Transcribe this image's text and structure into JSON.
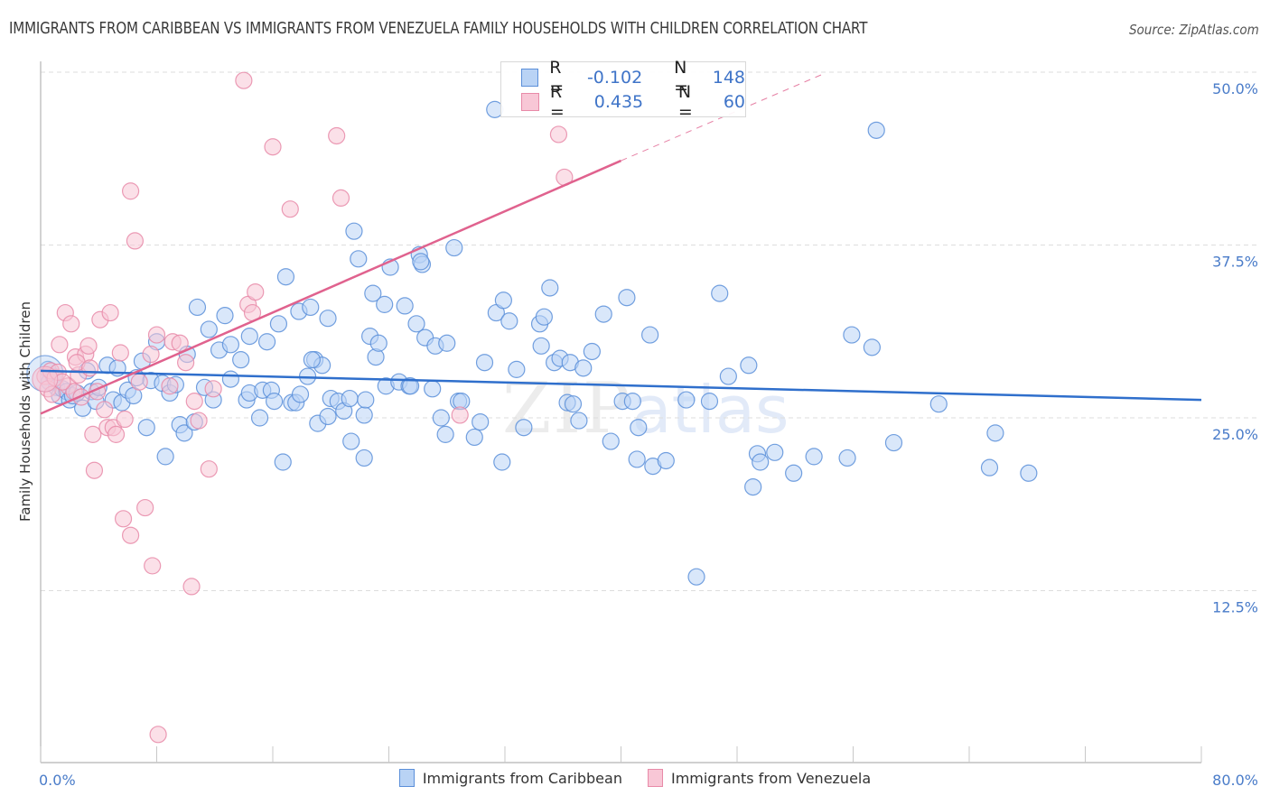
{
  "header": {
    "title": "IMMIGRANTS FROM CARIBBEAN VS IMMIGRANTS FROM VENEZUELA FAMILY HOUSEHOLDS WITH CHILDREN CORRELATION CHART",
    "source": "Source: ZipAtlas.com"
  },
  "watermark": {
    "zip": "ZIP",
    "atlas": "atlas"
  },
  "legend": {
    "series": [
      {
        "r_label": "R =",
        "r_value": "-0.102",
        "n_label": "N =",
        "n_value": "148"
      },
      {
        "r_label": "R =",
        "r_value": " 0.435",
        "n_label": "N =",
        "n_value": " 60"
      }
    ]
  },
  "bottom_legend": {
    "items": [
      "Immigrants from Caribbean",
      "Immigrants from Venezuela"
    ]
  },
  "colors": {
    "caribbean_fill": "#b9d3f5",
    "caribbean_stroke": "#5b8fd9",
    "caribbean_line": "#2f6fcc",
    "venezuela_fill": "#f8c7d6",
    "venezuela_stroke": "#e88aa8",
    "venezuela_line": "#e0628e",
    "tick_label": "#4a7cc9",
    "grid": "#dddddd"
  },
  "chart_data": {
    "type": "scatter",
    "title": "IMMIGRANTS FROM CARIBBEAN VS IMMIGRANTS FROM VENEZUELA FAMILY HOUSEHOLDS WITH CHILDREN CORRELATION CHART",
    "xlabel": "",
    "ylabel": "Family Households with Children",
    "xlim": [
      0,
      80
    ],
    "ylim": [
      0,
      51.5
    ],
    "x_ticks": [
      0,
      8,
      16,
      24,
      32,
      40,
      48,
      56,
      64,
      72,
      80
    ],
    "x_tick_labels": {
      "0": "0.0%",
      "80": "80.0%"
    },
    "y_ticks": [
      12.5,
      25.0,
      37.5,
      50.0
    ],
    "y_tick_labels": [
      "12.5%",
      "25.0%",
      "37.5%",
      "50.0%"
    ],
    "grid": true,
    "legend_position": "top-center",
    "series": [
      {
        "name": "Immigrants from Caribbean",
        "R": -0.102,
        "N": 148,
        "trend": {
          "x0": 0,
          "y0": 28.4,
          "x1": 80,
          "y1": 26.3,
          "dashed_to": null
        },
        "points": [
          [
            0.5,
            28.5
          ],
          [
            0.6,
            27.6
          ],
          [
            0.9,
            28.0
          ],
          [
            1.1,
            27.2
          ],
          [
            1.3,
            26.6
          ],
          [
            1.5,
            27.1
          ],
          [
            1.8,
            26.9
          ],
          [
            2.0,
            26.3
          ],
          [
            2.2,
            26.6
          ],
          [
            2.5,
            26.8
          ],
          [
            2.9,
            25.7
          ],
          [
            3.2,
            28.4
          ],
          [
            3.5,
            26.9
          ],
          [
            3.8,
            26.2
          ],
          [
            4.0,
            27.2
          ],
          [
            4.6,
            28.8
          ],
          [
            5.0,
            26.3
          ],
          [
            5.3,
            28.6
          ],
          [
            5.6,
            26.1
          ],
          [
            6.0,
            27.0
          ],
          [
            6.4,
            26.6
          ],
          [
            6.6,
            27.9
          ],
          [
            7.0,
            29.1
          ],
          [
            7.3,
            24.3
          ],
          [
            7.6,
            27.7
          ],
          [
            8.0,
            30.5
          ],
          [
            8.4,
            27.5
          ],
          [
            8.6,
            22.2
          ],
          [
            8.9,
            26.8
          ],
          [
            9.3,
            27.4
          ],
          [
            9.6,
            24.5
          ],
          [
            9.9,
            23.9
          ],
          [
            10.1,
            29.6
          ],
          [
            10.6,
            24.7
          ],
          [
            10.8,
            33.0
          ],
          [
            11.3,
            27.2
          ],
          [
            11.6,
            31.4
          ],
          [
            11.9,
            26.3
          ],
          [
            12.3,
            29.9
          ],
          [
            12.7,
            32.4
          ],
          [
            13.1,
            30.3
          ],
          [
            13.1,
            27.8
          ],
          [
            13.8,
            29.2
          ],
          [
            14.2,
            26.3
          ],
          [
            14.4,
            30.9
          ],
          [
            14.4,
            26.8
          ],
          [
            15.1,
            25.0
          ],
          [
            15.3,
            27.0
          ],
          [
            15.6,
            30.5
          ],
          [
            15.9,
            27.0
          ],
          [
            16.1,
            26.2
          ],
          [
            16.4,
            31.8
          ],
          [
            16.7,
            21.8
          ],
          [
            16.9,
            35.2
          ],
          [
            17.3,
            26.1
          ],
          [
            17.6,
            26.1
          ],
          [
            17.8,
            32.7
          ],
          [
            17.9,
            26.7
          ],
          [
            18.4,
            28.0
          ],
          [
            18.6,
            33.0
          ],
          [
            18.9,
            29.2
          ],
          [
            19.1,
            24.6
          ],
          [
            19.4,
            28.8
          ],
          [
            19.8,
            25.1
          ],
          [
            19.8,
            32.2
          ],
          [
            20.0,
            26.4
          ],
          [
            20.5,
            26.2
          ],
          [
            20.9,
            25.5
          ],
          [
            21.3,
            26.4
          ],
          [
            21.4,
            23.3
          ],
          [
            21.6,
            38.5
          ],
          [
            21.9,
            36.5
          ],
          [
            22.3,
            25.2
          ],
          [
            22.4,
            26.3
          ],
          [
            22.7,
            30.9
          ],
          [
            22.9,
            34.0
          ],
          [
            23.1,
            29.4
          ],
          [
            23.3,
            30.4
          ],
          [
            23.7,
            33.2
          ],
          [
            23.8,
            27.3
          ],
          [
            24.1,
            35.9
          ],
          [
            24.7,
            27.6
          ],
          [
            25.1,
            33.1
          ],
          [
            25.4,
            27.3
          ],
          [
            25.5,
            27.3
          ],
          [
            25.9,
            31.8
          ],
          [
            26.1,
            36.8
          ],
          [
            26.3,
            36.1
          ],
          [
            26.5,
            30.8
          ],
          [
            27.0,
            27.1
          ],
          [
            27.2,
            30.2
          ],
          [
            27.6,
            25.0
          ],
          [
            27.9,
            23.8
          ],
          [
            28.0,
            30.4
          ],
          [
            28.5,
            37.3
          ],
          [
            28.8,
            26.2
          ],
          [
            29.0,
            26.2
          ],
          [
            29.9,
            23.6
          ],
          [
            30.3,
            24.7
          ],
          [
            30.6,
            29.0
          ],
          [
            31.4,
            32.6
          ],
          [
            31.8,
            21.8
          ],
          [
            31.9,
            33.5
          ],
          [
            32.3,
            32.0
          ],
          [
            32.8,
            28.5
          ],
          [
            33.3,
            24.3
          ],
          [
            34.4,
            31.8
          ],
          [
            34.5,
            30.2
          ],
          [
            34.7,
            32.3
          ],
          [
            35.1,
            34.4
          ],
          [
            35.4,
            29.0
          ],
          [
            35.8,
            29.3
          ],
          [
            36.3,
            26.1
          ],
          [
            36.5,
            29.0
          ],
          [
            36.7,
            26.0
          ],
          [
            37.1,
            24.8
          ],
          [
            37.4,
            28.6
          ],
          [
            38.0,
            29.8
          ],
          [
            38.8,
            32.5
          ],
          [
            39.3,
            23.3
          ],
          [
            40.1,
            26.2
          ],
          [
            40.4,
            33.7
          ],
          [
            40.8,
            26.2
          ],
          [
            41.1,
            22.0
          ],
          [
            41.2,
            24.3
          ],
          [
            42.0,
            31.0
          ],
          [
            42.2,
            21.5
          ],
          [
            43.1,
            21.9
          ],
          [
            44.5,
            26.3
          ],
          [
            45.2,
            13.5
          ],
          [
            46.1,
            26.2
          ],
          [
            46.8,
            34.0
          ],
          [
            47.4,
            28.0
          ],
          [
            48.8,
            28.8
          ],
          [
            49.1,
            20.0
          ],
          [
            49.4,
            22.4
          ],
          [
            49.6,
            21.8
          ],
          [
            50.6,
            22.5
          ],
          [
            51.9,
            21.0
          ],
          [
            53.3,
            22.2
          ],
          [
            55.6,
            22.1
          ],
          [
            55.9,
            31.0
          ],
          [
            57.3,
            30.1
          ],
          [
            57.6,
            45.8
          ],
          [
            58.8,
            23.2
          ],
          [
            61.9,
            26.0
          ],
          [
            65.4,
            21.4
          ],
          [
            65.8,
            23.9
          ],
          [
            68.1,
            21.0
          ],
          [
            31.3,
            47.3
          ],
          [
            26.2,
            36.3
          ],
          [
            22.3,
            22.1
          ],
          [
            18.7,
            29.2
          ]
        ]
      },
      {
        "name": "Immigrants from Venezuela",
        "R": 0.435,
        "N": 60,
        "trend": {
          "x0": 0,
          "y0": 25.3,
          "x1": 40,
          "y1": 43.6,
          "dashed_to": [
            54,
            49.9
          ]
        },
        "points": [
          [
            0.3,
            28.0
          ],
          [
            0.5,
            27.1
          ],
          [
            0.7,
            28.4
          ],
          [
            1.0,
            27.9
          ],
          [
            1.2,
            28.3
          ],
          [
            1.3,
            30.3
          ],
          [
            1.7,
            32.6
          ],
          [
            1.9,
            27.3
          ],
          [
            2.1,
            31.8
          ],
          [
            2.3,
            26.9
          ],
          [
            2.4,
            29.4
          ],
          [
            2.6,
            28.1
          ],
          [
            2.8,
            26.5
          ],
          [
            3.1,
            29.6
          ],
          [
            3.3,
            30.2
          ],
          [
            3.6,
            23.8
          ],
          [
            3.7,
            21.2
          ],
          [
            3.9,
            26.9
          ],
          [
            4.1,
            32.1
          ],
          [
            4.4,
            25.6
          ],
          [
            4.6,
            24.3
          ],
          [
            4.8,
            32.6
          ],
          [
            5.0,
            24.3
          ],
          [
            5.2,
            23.8
          ],
          [
            5.5,
            29.7
          ],
          [
            5.7,
            17.7
          ],
          [
            6.2,
            16.5
          ],
          [
            6.2,
            41.4
          ],
          [
            6.5,
            37.8
          ],
          [
            6.8,
            27.6
          ],
          [
            7.2,
            18.5
          ],
          [
            7.7,
            14.3
          ],
          [
            8.0,
            31.0
          ],
          [
            8.1,
            2.1
          ],
          [
            8.9,
            27.3
          ],
          [
            9.1,
            30.5
          ],
          [
            9.6,
            30.4
          ],
          [
            10.4,
            12.8
          ],
          [
            10.6,
            26.2
          ],
          [
            10.9,
            24.8
          ],
          [
            11.6,
            21.3
          ],
          [
            11.9,
            27.1
          ],
          [
            14.0,
            49.4
          ],
          [
            14.3,
            33.2
          ],
          [
            14.6,
            32.6
          ],
          [
            14.8,
            34.1
          ],
          [
            16.0,
            44.6
          ],
          [
            17.2,
            40.1
          ],
          [
            20.4,
            45.4
          ],
          [
            20.7,
            40.9
          ],
          [
            28.9,
            25.2
          ],
          [
            35.7,
            45.5
          ],
          [
            36.1,
            42.4
          ],
          [
            1.5,
            27.6
          ],
          [
            0.8,
            26.7
          ],
          [
            2.5,
            29.0
          ],
          [
            3.4,
            28.6
          ],
          [
            5.8,
            24.9
          ],
          [
            7.6,
            29.6
          ],
          [
            10.0,
            29.0
          ]
        ]
      }
    ]
  }
}
